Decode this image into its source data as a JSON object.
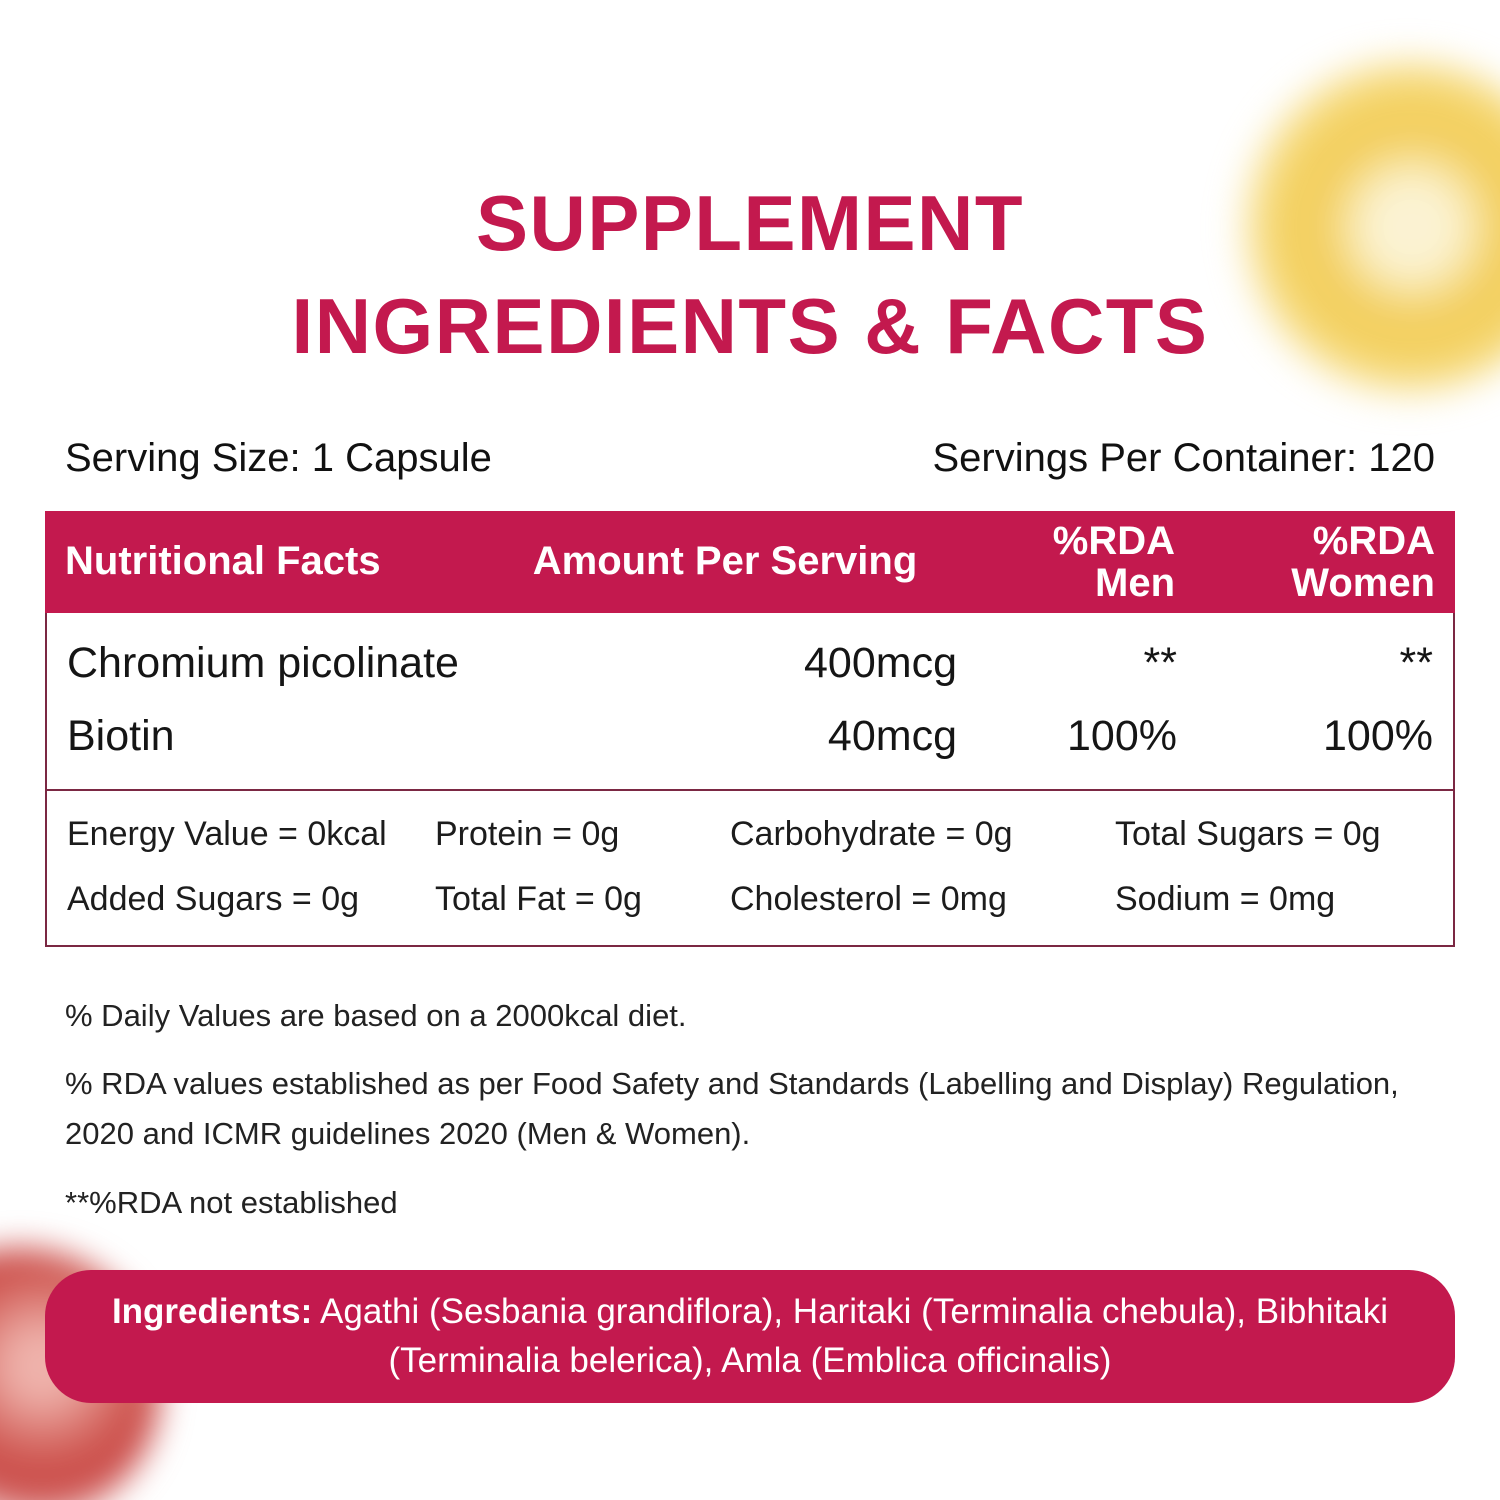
{
  "title": {
    "line1": "SUPPLEMENT",
    "line2": "INGREDIENTS & FACTS"
  },
  "serving": {
    "size": "Serving Size: 1 Capsule",
    "per_container": "Servings Per Container: 120"
  },
  "table": {
    "header": {
      "nutritional_facts": "Nutritional Facts",
      "amount_per_serving": "Amount Per Serving",
      "rda": "%RDA",
      "men": "Men",
      "women": "Women"
    },
    "rows": [
      {
        "name": "Chromium picolinate",
        "amount": "400mcg",
        "rda_men": "**",
        "rda_women": "**"
      },
      {
        "name": "Biotin",
        "amount": "40mcg",
        "rda_men": "100%",
        "rda_women": "100%"
      }
    ],
    "facts": [
      [
        "Energy Value = 0kcal",
        "Protein = 0g",
        "Carbohydrate = 0g",
        "Total Sugars = 0g"
      ],
      [
        "Added Sugars = 0g",
        "Total Fat = 0g",
        "Cholesterol = 0mg",
        "Sodium = 0mg"
      ]
    ]
  },
  "footnotes": [
    "% Daily Values are based on a 2000kcal diet.",
    "% RDA values established as per Food Safety and Standards (Labelling and Display) Regulation, 2020 and ICMR guidelines 2020 (Men & Women).",
    "**%RDA not established"
  ],
  "ingredients": {
    "label": "Ingredients:",
    "text": "Agathi (Sesbania grandiflora), Haritaki (Terminalia chebula), Bibhitaki (Terminalia belerica), Amla (Emblica officinalis)"
  },
  "colors": {
    "crimson": "#C3194E",
    "table_border": "#7B2843",
    "decor_yellow": "#F2CC59",
    "decor_red": "#C94744"
  }
}
